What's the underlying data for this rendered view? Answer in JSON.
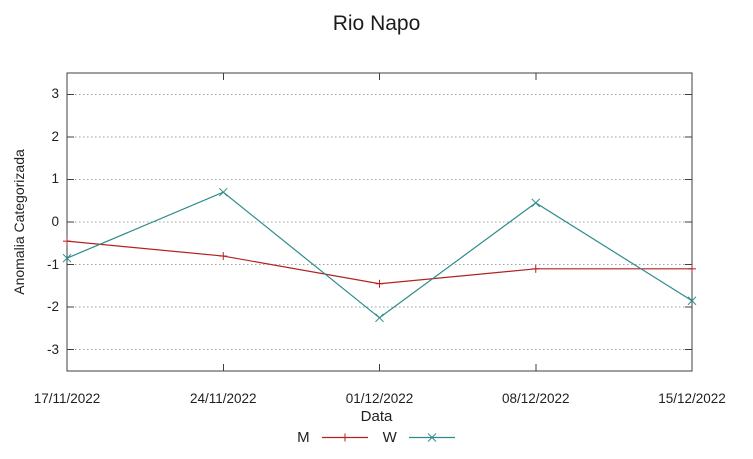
{
  "chart_data": {
    "type": "line",
    "title": "Rio Napo",
    "xlabel": "Data",
    "ylabel": "Anomalia Categorizada",
    "categories": [
      "17/11/2022",
      "24/11/2022",
      "01/12/2022",
      "08/12/2022",
      "15/12/2022"
    ],
    "series": [
      {
        "name": "M",
        "marker": "plus",
        "color": "#b22222",
        "values": [
          -0.45,
          -0.8,
          -1.45,
          -1.1,
          -1.1
        ]
      },
      {
        "name": "W",
        "marker": "cross",
        "color": "#2e8b8b",
        "values": [
          -0.85,
          0.7,
          -2.25,
          0.45,
          -1.85
        ]
      }
    ],
    "yticks": [
      3,
      2,
      1,
      0,
      -1,
      -2,
      -3
    ],
    "ylim": [
      -3.5,
      3.5
    ],
    "grid": true,
    "grid_style": "dotted",
    "legend_position": "bottom-center",
    "colors": {
      "background": "#ffffff",
      "border": "#3f3f3f",
      "grid": "#a0a0a0",
      "text": "#1f1f1f"
    }
  }
}
